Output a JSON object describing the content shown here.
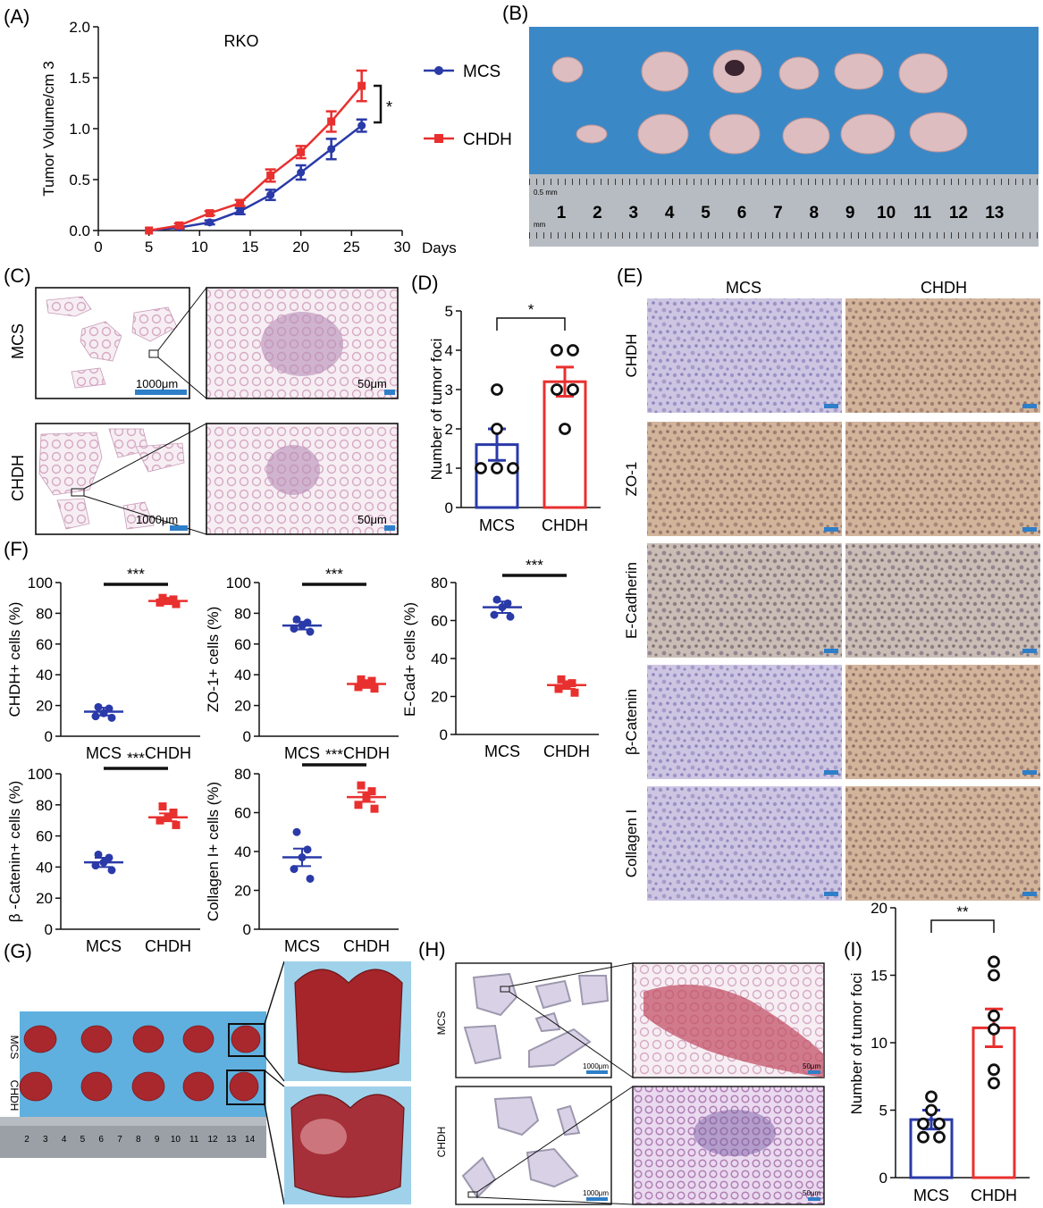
{
  "panels": {
    "A": "(A)",
    "B": "(B)",
    "C": "(C)",
    "D": "(D)",
    "E": "(E)",
    "F": "(F)",
    "G": "(G)",
    "H": "(H)",
    "I": "(I)"
  },
  "colors": {
    "mcs": "#2a3aa8",
    "chdh": "#e8302f",
    "ihc_blue": "#b7b0d3",
    "ihc_brown": "#c9a387",
    "he_pink": "#e8c7d8",
    "scale_bar": "#2f7ec8"
  },
  "panel_b": {
    "ruler_numbers": [
      "1",
      "2",
      "3",
      "4",
      "5",
      "6",
      "7",
      "8",
      "9",
      "10",
      "11",
      "12",
      "13"
    ],
    "ruler_unit_top": "0.5 mm",
    "ruler_unit_bottom": "mm"
  },
  "panel_c": {
    "row_labels": [
      "MCS",
      "CHDH"
    ],
    "scale_low": "1000μm",
    "scale_high": "50μm"
  },
  "panel_e": {
    "col_labels": [
      "MCS",
      "CHDH"
    ],
    "row_labels": [
      "CHDH",
      "ZO-1",
      "E-Cadherin",
      "β-Catenin",
      "Collagen I"
    ]
  },
  "panel_g": {
    "row_labels": [
      "MCS",
      "CHDH"
    ],
    "ruler_numbers": [
      "2",
      "3",
      "4",
      "5",
      "6",
      "7",
      "8",
      "9",
      "10",
      "11",
      "12",
      "13",
      "14"
    ]
  },
  "panel_h": {
    "row_labels": [
      "MCS",
      "CHDH"
    ],
    "scale_low": "1000μm",
    "scale_high": "50μm"
  },
  "chart_data": [
    {
      "id": "A",
      "type": "line",
      "title": "RKO",
      "xlabel": "Days",
      "ylabel": "Tumor Volume/cm 3",
      "xlim": [
        0,
        30
      ],
      "ylim": [
        0,
        2.0
      ],
      "xticks": [
        "0",
        "5",
        "10",
        "15",
        "20",
        "25",
        "30"
      ],
      "yticks": [
        "0.0",
        "0.5",
        "1.0",
        "1.5",
        "2.0"
      ],
      "x": [
        5,
        8,
        11,
        14,
        17,
        20,
        23,
        26
      ],
      "series": [
        {
          "name": "MCS",
          "values": [
            0.0,
            0.03,
            0.08,
            0.19,
            0.35,
            0.57,
            0.8,
            1.03
          ],
          "errors": [
            0.0,
            0.01,
            0.02,
            0.03,
            0.05,
            0.07,
            0.1,
            0.06
          ]
        },
        {
          "name": "CHDH",
          "values": [
            0.0,
            0.05,
            0.17,
            0.27,
            0.54,
            0.77,
            1.07,
            1.42
          ],
          "errors": [
            0.0,
            0.02,
            0.02,
            0.03,
            0.06,
            0.06,
            0.1,
            0.15
          ]
        }
      ],
      "significance": "*",
      "legend": "right"
    },
    {
      "id": "D",
      "type": "bar",
      "ylabel": "Number of tumor foci",
      "categories": [
        "MCS",
        "CHDH"
      ],
      "values": [
        1.6,
        3.2
      ],
      "errors": [
        0.4,
        0.37
      ],
      "points": [
        [
          3,
          2,
          1,
          1,
          1
        ],
        [
          4,
          4,
          3,
          3,
          2
        ]
      ],
      "ylim": [
        0,
        5
      ],
      "yticks": [
        "0",
        "1",
        "2",
        "3",
        "4",
        "5"
      ],
      "significance": "*"
    },
    {
      "id": "F1",
      "type": "scatter",
      "ylabel": "CHDH+ cells (%)",
      "categories": [
        "MCS",
        "CHDH"
      ],
      "means": [
        16,
        88
      ],
      "errors": [
        2.5,
        1
      ],
      "points": [
        [
          19,
          18,
          15,
          13,
          12
        ],
        [
          90,
          89,
          88,
          87,
          86
        ]
      ],
      "ylim": [
        0,
        100
      ],
      "yticks": [
        "0",
        "20",
        "40",
        "60",
        "80",
        "100"
      ],
      "significance": "***"
    },
    {
      "id": "F2",
      "type": "scatter",
      "ylabel": "ZO-1+ cells (%)",
      "categories": [
        "MCS",
        "CHDH"
      ],
      "means": [
        72,
        34
      ],
      "errors": [
        2.5,
        2.5
      ],
      "points": [
        [
          76,
          74,
          72,
          70,
          68
        ],
        [
          37,
          36,
          34,
          32,
          31
        ]
      ],
      "ylim": [
        0,
        100
      ],
      "yticks": [
        "0",
        "20",
        "40",
        "60",
        "80",
        "100"
      ],
      "significance": "***"
    },
    {
      "id": "F3",
      "type": "scatter",
      "ylabel": "E-Cad+ cells (%)",
      "categories": [
        "MCS",
        "CHDH"
      ],
      "means": [
        67,
        26
      ],
      "errors": [
        3,
        2
      ],
      "points": [
        [
          71,
          69,
          67,
          63,
          62
        ],
        [
          29,
          27,
          26,
          24,
          22
        ]
      ],
      "ylim": [
        0,
        80
      ],
      "yticks": [
        "0",
        "20",
        "40",
        "60",
        "80"
      ],
      "significance": "***"
    },
    {
      "id": "F4",
      "type": "scatter",
      "ylabel": "β -Catenin+ cells (%)",
      "categories": [
        "MCS",
        "CHDH"
      ],
      "means": [
        43,
        72
      ],
      "errors": [
        3,
        2.5
      ],
      "points": [
        [
          48,
          46,
          43,
          41,
          38
        ],
        [
          79,
          75,
          72,
          70,
          67
        ]
      ],
      "ylim": [
        0,
        100
      ],
      "yticks": [
        "0",
        "20",
        "40",
        "60",
        "80",
        "100"
      ],
      "significance": "***"
    },
    {
      "id": "F5",
      "type": "scatter",
      "ylabel": "Collagen I+ cells (%)",
      "categories": [
        "MCS",
        "CHDH"
      ],
      "means": [
        37,
        68
      ],
      "errors": [
        4.5,
        2.5
      ],
      "points": [
        [
          50,
          41,
          37,
          31,
          26
        ],
        [
          74,
          71,
          68,
          64,
          62
        ]
      ],
      "ylim": [
        0,
        80
      ],
      "yticks": [
        "0",
        "20",
        "40",
        "60",
        "80"
      ],
      "significance": "***"
    },
    {
      "id": "I",
      "type": "bar",
      "ylabel": "Number of tumor foci",
      "categories": [
        "MCS",
        "CHDH"
      ],
      "values": [
        4.3,
        11.1
      ],
      "errors": [
        0.7,
        1.4
      ],
      "points": [
        [
          6,
          5,
          4,
          4,
          3,
          3
        ],
        [
          16,
          15,
          12,
          11,
          8,
          7
        ]
      ],
      "ylim": [
        0,
        20
      ],
      "yticks": [
        "0",
        "5",
        "10",
        "15",
        "20"
      ],
      "significance": "**"
    }
  ]
}
